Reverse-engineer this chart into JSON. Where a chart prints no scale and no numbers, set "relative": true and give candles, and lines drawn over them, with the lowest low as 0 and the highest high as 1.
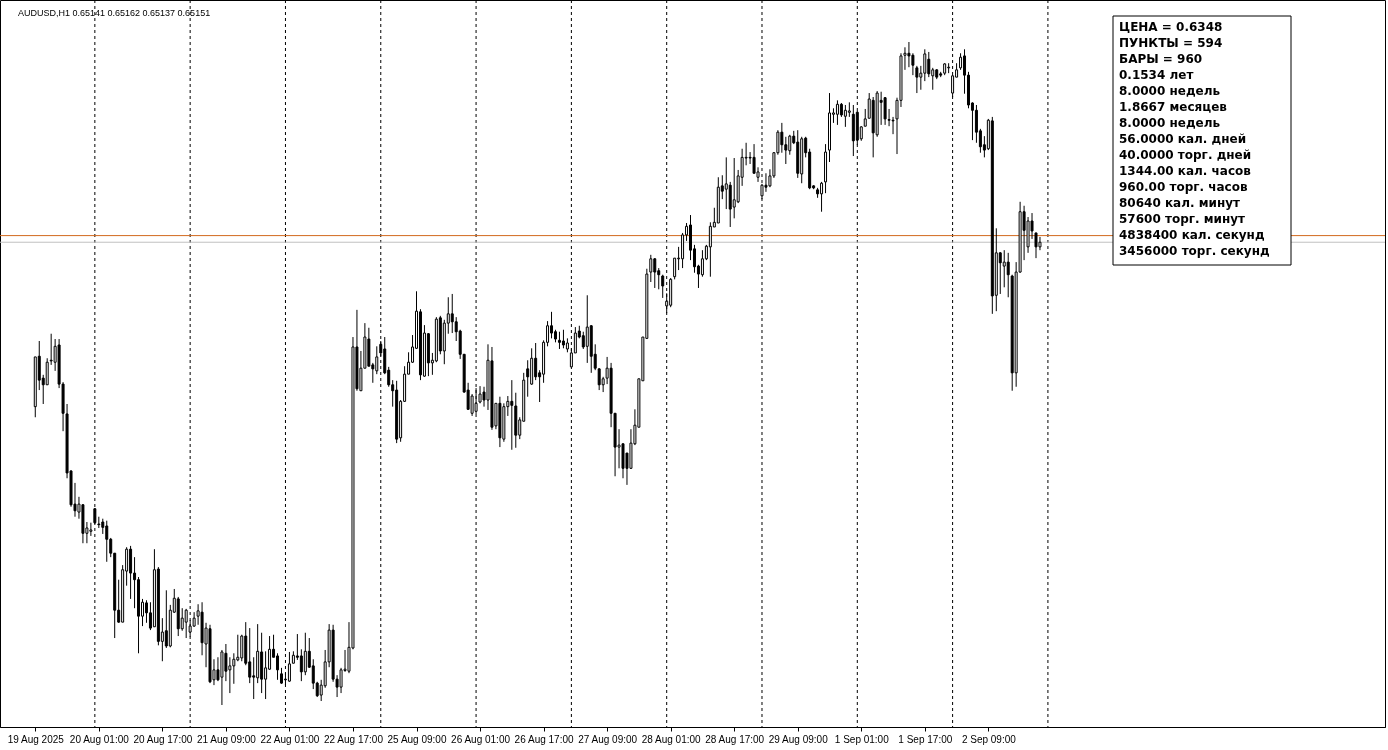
{
  "chart_data": {
    "type": "candlestick",
    "title": "AUDUSD,H1 0.65141 0.65162 0.65137 0.65151",
    "relative": true,
    "tick_labels": "x",
    "color": "#000000",
    "categories": [
      "19 Aug 2025",
      null,
      null,
      null,
      null,
      null,
      null,
      null,
      null,
      null,
      null,
      null,
      null,
      null,
      null,
      null,
      "20 Aug 01:00",
      null,
      null,
      null,
      null,
      null,
      null,
      null,
      null,
      null,
      null,
      null,
      null,
      null,
      null,
      null,
      "20 Aug 17:00",
      null,
      null,
      null,
      null,
      null,
      null,
      null,
      null,
      null,
      null,
      null,
      null,
      null,
      null,
      null,
      "21 Aug 09:00",
      null,
      null,
      null,
      null,
      null,
      null,
      null,
      null,
      null,
      null,
      null,
      null,
      null,
      null,
      null,
      "22 Aug 01:00",
      null,
      null,
      null,
      null,
      null,
      null,
      null,
      null,
      null,
      null,
      null,
      null,
      null,
      null,
      null,
      "22 Aug 17:00",
      null,
      null,
      null,
      null,
      null,
      null,
      null,
      null,
      null,
      null,
      null,
      null,
      null,
      null,
      null,
      "25 Aug 09:00",
      null,
      null,
      null,
      null,
      null,
      null,
      null,
      null,
      null,
      null,
      null,
      null,
      null,
      null,
      null,
      "26 Aug 01:00",
      null,
      null,
      null,
      null,
      null,
      null,
      null,
      null,
      null,
      null,
      null,
      null,
      null,
      null,
      null,
      "26 Aug 17:00",
      null,
      null,
      null,
      null,
      null,
      null,
      null,
      null,
      null,
      null,
      null,
      null,
      null,
      null,
      null,
      "27 Aug 09:00",
      null,
      null,
      null,
      null,
      null,
      null,
      null,
      null,
      null,
      null,
      null,
      null,
      null,
      null,
      null,
      "28 Aug 01:00",
      null,
      null,
      null,
      null,
      null,
      null,
      null,
      null,
      null,
      null,
      null,
      null,
      null,
      null,
      null,
      "28 Aug 17:00",
      null,
      null,
      null,
      null,
      null,
      null,
      null,
      null,
      null,
      null,
      null,
      null,
      null,
      null,
      null,
      "29 Aug 09:00",
      null,
      null,
      null,
      null,
      null,
      null,
      null,
      null,
      null,
      null,
      null,
      null,
      null,
      null,
      null,
      "1 Sep 01:00",
      null,
      null,
      null,
      null,
      null,
      null,
      null,
      null,
      null,
      null,
      null,
      null,
      null,
      null,
      null,
      "1 Sep 17:00",
      null,
      null,
      null,
      null,
      null,
      null,
      null,
      null,
      null,
      null,
      null,
      null,
      null,
      null,
      null,
      "2 Sep 09:00",
      null,
      null,
      null,
      null,
      null,
      null,
      null,
      null,
      null,
      null,
      null,
      null,
      null
    ],
    "ohlc": [
      [
        0.45,
        0.525,
        0.434,
        0.525
      ],
      [
        0.526,
        0.549,
        0.475,
        0.49
      ],
      [
        0.493,
        0.498,
        0.454,
        0.483
      ],
      [
        0.483,
        0.523,
        0.483,
        0.517
      ],
      [
        0.52,
        0.56,
        0.513,
        0.519
      ],
      [
        0.517,
        0.552,
        0.504,
        0.541
      ],
      [
        0.543,
        0.552,
        0.478,
        0.484
      ],
      [
        0.484,
        0.487,
        0.413,
        0.44
      ],
      [
        0.439,
        0.454,
        0.342,
        0.35
      ],
      [
        0.353,
        0.354,
        0.299,
        0.302
      ],
      [
        0.303,
        0.335,
        0.284,
        0.293
      ],
      [
        0.291,
        0.314,
        0.281,
        0.303
      ],
      [
        0.302,
        0.303,
        0.244,
        0.259
      ],
      [
        0.259,
        0.276,
        0.244,
        0.267
      ],
      [
        0.262,
        0.275,
        0.255,
        0.264
      ],
      [
        0.296,
        0.297,
        0.273,
        0.275
      ],
      [
        0.273,
        0.284,
        0.267,
        0.272
      ],
      [
        0.276,
        0.281,
        0.258,
        0.268
      ],
      [
        0.27,
        0.278,
        0.216,
        0.25
      ],
      [
        0.25,
        0.252,
        0.223,
        0.229
      ],
      [
        0.229,
        0.229,
        0.101,
        0.143
      ],
      [
        0.143,
        0.189,
        0.124,
        0.125
      ],
      [
        0.125,
        0.211,
        0.125,
        0.204
      ],
      [
        0.202,
        0.238,
        0.18,
        0.235
      ],
      [
        0.235,
        0.24,
        0.16,
        0.199
      ],
      [
        0.199,
        0.223,
        0.146,
        0.189
      ],
      [
        0.189,
        0.193,
        0.078,
        0.134
      ],
      [
        0.134,
        0.16,
        0.119,
        0.155
      ],
      [
        0.154,
        0.158,
        0.124,
        0.139
      ],
      [
        0.139,
        0.155,
        0.113,
        0.116
      ],
      [
        0.118,
        0.235,
        0.118,
        0.204
      ],
      [
        0.205,
        0.208,
        0.09,
        0.096
      ],
      [
        0.096,
        0.131,
        0.066,
        0.11
      ],
      [
        0.112,
        0.173,
        0.086,
        0.089
      ],
      [
        0.089,
        0.151,
        0.087,
        0.143
      ],
      [
        0.14,
        0.175,
        0.139,
        0.161
      ],
      [
        0.16,
        0.163,
        0.104,
        0.115
      ],
      [
        0.115,
        0.146,
        0.112,
        0.131
      ],
      [
        0.125,
        0.145,
        0.101,
        0.143
      ],
      [
        0.11,
        0.128,
        0.103,
        0.119
      ],
      [
        0.119,
        0.14,
        0.118,
        0.131
      ],
      [
        0.134,
        0.152,
        0.121,
        0.142
      ],
      [
        0.14,
        0.155,
        0.075,
        0.094
      ],
      [
        0.092,
        0.124,
        0.057,
        0.116
      ],
      [
        0.115,
        0.121,
        0.033,
        0.035
      ],
      [
        0.038,
        0.069,
        0.03,
        0.053
      ],
      [
        0.053,
        0.072,
        0.036,
        0.038
      ],
      [
        0.042,
        0.083,
        0,
        0.08
      ],
      [
        0.078,
        0.092,
        0.036,
        0.051
      ],
      [
        0.053,
        0.072,
        0.018,
        0.059
      ],
      [
        0.059,
        0.078,
        0.032,
        0.069
      ],
      [
        0.068,
        0.106,
        0.066,
        0.072
      ],
      [
        0.071,
        0.106,
        0.066,
        0.104
      ],
      [
        0.104,
        0.125,
        0.06,
        0.063
      ],
      [
        0.065,
        0.116,
        0.033,
        0.042
      ],
      [
        0.044,
        0.072,
        0.009,
        0.042
      ],
      [
        0.041,
        0.122,
        0.033,
        0.081
      ],
      [
        0.08,
        0.109,
        0.018,
        0.039
      ],
      [
        0.039,
        0.081,
        0.009,
        0.056
      ],
      [
        0.054,
        0.104,
        0.053,
        0.084
      ],
      [
        0.084,
        0.106,
        0.072,
        0.072
      ],
      [
        0.074,
        0.078,
        0.038,
        0.053
      ],
      [
        0.047,
        0.056,
        0.032,
        0.033
      ],
      [
        0.039,
        0.048,
        0.03,
        0.038
      ],
      [
        0.036,
        0.08,
        0.035,
        0.062
      ],
      [
        0.063,
        0.081,
        0.063,
        0.075
      ],
      [
        0.074,
        0.107,
        0.068,
        0.072
      ],
      [
        0.074,
        0.084,
        0.036,
        0.05
      ],
      [
        0.05,
        0.109,
        0.045,
        0.081
      ],
      [
        0.081,
        0.101,
        0.056,
        0.057
      ],
      [
        0.059,
        0.069,
        0.024,
        0.033
      ],
      [
        0.033,
        0.035,
        0.012,
        0.014
      ],
      [
        0.015,
        0.038,
        0.006,
        0.03
      ],
      [
        0.029,
        0.083,
        0.026,
        0.065
      ],
      [
        0.065,
        0.122,
        0.057,
        0.113
      ],
      [
        0.113,
        0.121,
        0.035,
        0.039
      ],
      [
        0.039,
        0.045,
        0.012,
        0.027
      ],
      [
        0.027,
        0.056,
        0.018,
        0.053
      ],
      [
        0.052,
        0.083,
        0.05,
        0.054
      ],
      [
        0.051,
        0.125,
        0.048,
        0.087
      ],
      [
        0.086,
        0.555,
        0.084,
        0.54
      ],
      [
        0.54,
        0.596,
        0.474,
        0.477
      ],
      [
        0.474,
        0.534,
        0.474,
        0.508
      ],
      [
        0.508,
        0.576,
        0.508,
        0.555
      ],
      [
        0.552,
        0.569,
        0.511,
        0.511
      ],
      [
        0.513,
        0.516,
        0.486,
        0.507
      ],
      [
        0.504,
        0.541,
        0.499,
        0.525
      ],
      [
        0.544,
        0.549,
        0.526,
        0.531
      ],
      [
        0.537,
        0.555,
        0.499,
        0.501
      ],
      [
        0.505,
        0.51,
        0.48,
        0.483
      ],
      [
        0.483,
        0.49,
        0.45,
        0.474
      ],
      [
        0.475,
        0.489,
        0.395,
        0.401
      ],
      [
        0.403,
        0.46,
        0.397,
        0.458
      ],
      [
        0.458,
        0.511,
        0.457,
        0.499
      ],
      [
        0.499,
        0.532,
        0.499,
        0.517
      ],
      [
        0.517,
        0.558,
        0.516,
        0.54
      ],
      [
        0.538,
        0.624,
        0.537,
        0.594
      ],
      [
        0.593,
        0.597,
        0.49,
        0.498
      ],
      [
        0.496,
        0.573,
        0.495,
        0.561
      ],
      [
        0.56,
        0.561,
        0.496,
        0.516
      ],
      [
        0.516,
        0.531,
        0.498,
        0.52
      ],
      [
        0.519,
        0.585,
        0.517,
        0.582
      ],
      [
        0.584,
        0.587,
        0.529,
        0.534
      ],
      [
        0.534,
        0.581,
        0.514,
        0.576
      ],
      [
        0.576,
        0.615,
        0.56,
        0.59
      ],
      [
        0.59,
        0.62,
        0.561,
        0.578
      ],
      [
        0.578,
        0.585,
        0.549,
        0.563
      ],
      [
        0.564,
        0.566,
        0.522,
        0.529
      ],
      [
        0.529,
        0.529,
        0.471,
        0.472
      ],
      [
        0.475,
        0.486,
        0.445,
        0.446
      ],
      [
        0.44,
        0.469,
        0.436,
        0.466
      ],
      [
        0.443,
        0.478,
        0.439,
        0.455
      ],
      [
        0.457,
        0.481,
        0.455,
        0.469
      ],
      [
        0.472,
        0.48,
        0.45,
        0.46
      ],
      [
        0.46,
        0.544,
        0.445,
        0.52
      ],
      [
        0.519,
        0.54,
        0.415,
        0.419
      ],
      [
        0.421,
        0.455,
        0.416,
        0.455
      ],
      [
        0.455,
        0.465,
        0.389,
        0.403
      ],
      [
        0.401,
        0.455,
        0.397,
        0.45
      ],
      [
        0.45,
        0.466,
        0.436,
        0.458
      ],
      [
        0.458,
        0.49,
        0.385,
        0.452
      ],
      [
        0.451,
        0.471,
        0.388,
        0.407
      ],
      [
        0.407,
        0.434,
        0.401,
        0.43
      ],
      [
        0.428,
        0.501,
        0.428,
        0.49
      ],
      [
        0.507,
        0.52,
        0.465,
        0.495
      ],
      [
        0.484,
        0.538,
        0.483,
        0.523
      ],
      [
        0.523,
        0.546,
        0.49,
        0.495
      ],
      [
        0.501,
        0.505,
        0.457,
        0.495
      ],
      [
        0.499,
        0.55,
        0.486,
        0.547
      ],
      [
        0.547,
        0.579,
        0.541,
        0.572
      ],
      [
        0.572,
        0.593,
        0.553,
        0.561
      ],
      [
        0.563,
        0.566,
        0.547,
        0.552
      ],
      [
        0.55,
        0.563,
        0.537,
        0.547
      ],
      [
        0.549,
        0.566,
        0.538,
        0.543
      ],
      [
        0.537,
        0.553,
        0.532,
        0.546
      ],
      [
        0.51,
        0.538,
        0.51,
        0.531
      ],
      [
        0.531,
        0.57,
        0.531,
        0.561
      ],
      [
        0.564,
        0.572,
        0.553,
        0.555
      ],
      [
        0.557,
        0.563,
        0.537,
        0.54
      ],
      [
        0.541,
        0.618,
        0.516,
        0.57
      ],
      [
        0.572,
        0.573,
        0.501,
        0.526
      ],
      [
        0.529,
        0.544,
        0.505,
        0.508
      ],
      [
        0.507,
        0.508,
        0.475,
        0.483
      ],
      [
        0.483,
        0.495,
        0.472,
        0.492
      ],
      [
        0.493,
        0.525,
        0.484,
        0.508
      ],
      [
        0.508,
        0.516,
        0.419,
        0.44
      ],
      [
        0.44,
        0.44,
        0.345,
        0.389
      ],
      [
        0.389,
        0.416,
        0.357,
        0.392
      ],
      [
        0.394,
        0.394,
        0.342,
        0.357
      ],
      [
        0.38,
        0.38,
        0.332,
        0.357
      ],
      [
        0.357,
        0.416,
        0.356,
        0.395
      ],
      [
        0.394,
        0.446,
        0.392,
        0.422
      ],
      [
        0.419,
        0.492,
        0.419,
        0.492
      ],
      [
        0.489,
        0.555,
        0.489,
        0.555
      ],
      [
        0.553,
        0.658,
        0.552,
        0.65
      ],
      [
        0.653,
        0.679,
        0.638,
        0.673
      ],
      [
        0.673,
        0.674,
        0.629,
        0.653
      ],
      [
        0.655,
        0.659,
        0.627,
        0.649
      ],
      [
        0.647,
        0.649,
        0.614,
        0.632
      ],
      [
        0.602,
        0.621,
        0.591,
        0.609
      ],
      [
        0.603,
        0.644,
        0.6,
        0.642
      ],
      [
        0.646,
        0.674,
        0.642,
        0.674
      ],
      [
        0.673,
        0.691,
        0.656,
        0.674
      ],
      [
        0.673,
        0.712,
        0.659,
        0.709
      ],
      [
        0.709,
        0.727,
        0.7,
        0.722
      ],
      [
        0.724,
        0.739,
        0.671,
        0.686
      ],
      [
        0.688,
        0.694,
        0.652,
        0.661
      ],
      [
        0.662,
        0.664,
        0.629,
        0.65
      ],
      [
        0.649,
        0.686,
        0.646,
        0.673
      ],
      [
        0.673,
        0.694,
        0.671,
        0.692
      ],
      [
        0.691,
        0.728,
        0.646,
        0.722
      ],
      [
        0.721,
        0.75,
        0.721,
        0.728
      ],
      [
        0.727,
        0.796,
        0.727,
        0.781
      ],
      [
        0.783,
        0.799,
        0.763,
        0.775
      ],
      [
        0.778,
        0.826,
        0.748,
        0.786
      ],
      [
        0.784,
        0.789,
        0.721,
        0.748
      ],
      [
        0.751,
        0.825,
        0.734,
        0.762
      ],
      [
        0.759,
        0.807,
        0.757,
        0.798
      ],
      [
        0.796,
        0.839,
        0.783,
        0.826
      ],
      [
        0.825,
        0.848,
        0.814,
        0.826
      ],
      [
        0.826,
        0.834,
        0.816,
        0.825
      ],
      [
        0.826,
        0.846,
        0.802,
        0.802
      ],
      [
        0.796,
        0.811,
        0.789,
        0.804
      ],
      [
        0.768,
        0.786,
        0.763,
        0.784
      ],
      [
        0.784,
        0.802,
        0.774,
        0.781
      ],
      [
        0.783,
        0.808,
        0.781,
        0.798
      ],
      [
        0.798,
        0.834,
        0.795,
        0.833
      ],
      [
        0.833,
        0.867,
        0.83,
        0.864
      ],
      [
        0.864,
        0.878,
        0.833,
        0.845
      ],
      [
        0.845,
        0.857,
        0.816,
        0.837
      ],
      [
        0.836,
        0.86,
        0.83,
        0.858
      ],
      [
        0.858,
        0.866,
        0.846,
        0.848
      ],
      [
        0.849,
        0.867,
        0.795,
        0.802
      ],
      [
        0.801,
        0.857,
        0.787,
        0.854
      ],
      [
        0.855,
        0.857,
        0.826,
        0.833
      ],
      [
        0.834,
        0.839,
        0.778,
        0.78
      ],
      [
        0.783,
        0.784,
        0.778,
        0.78
      ],
      [
        0.777,
        0.78,
        0.765,
        0.771
      ],
      [
        0.771,
        0.789,
        0.744,
        0.787
      ],
      [
        0.789,
        0.846,
        0.772,
        0.834
      ],
      [
        0.837,
        0.923,
        0.819,
        0.893
      ],
      [
        0.891,
        0.9,
        0.878,
        0.893
      ],
      [
        0.891,
        0.912,
        0.875,
        0.906
      ],
      [
        0.906,
        0.908,
        0.887,
        0.89
      ],
      [
        0.888,
        0.905,
        0.872,
        0.897
      ],
      [
        0.894,
        0.909,
        0.887,
        0.896
      ],
      [
        0.891,
        0.905,
        0.828,
        0.851
      ],
      [
        0.894,
        0.896,
        0.845,
        0.852
      ],
      [
        0.854,
        0.873,
        0.851,
        0.872
      ],
      [
        0.873,
        0.899,
        0.873,
        0.884
      ],
      [
        0.885,
        0.923,
        0.885,
        0.914
      ],
      [
        0.912,
        0.917,
        0.826,
        0.863
      ],
      [
        0.86,
        0.926,
        0.857,
        0.923
      ],
      [
        0.912,
        0.925,
        0.875,
        0.909
      ],
      [
        0.916,
        0.917,
        0.875,
        0.884
      ],
      [
        0.883,
        0.899,
        0.873,
        0.882
      ],
      [
        0.882,
        0.887,
        0.861,
        0.881
      ],
      [
        0.884,
        0.916,
        0.831,
        0.912
      ],
      [
        0.912,
        0.983,
        0.902,
        0.979
      ],
      [
        0.98,
        0.992,
        0.958,
        0.983
      ],
      [
        0.983,
        1,
        0.962,
        0.979
      ],
      [
        0.98,
        0.983,
        0.95,
        0.965
      ],
      [
        0.961,
        0.964,
        0.923,
        0.947
      ],
      [
        0.947,
        0.964,
        0.928,
        0.953
      ],
      [
        0.953,
        0.989,
        0.941,
        0.982
      ],
      [
        0.974,
        0.985,
        0.947,
        0.952
      ],
      [
        0.949,
        0.961,
        0.928,
        0.958
      ],
      [
        0.958,
        0.959,
        0.944,
        0.947
      ],
      [
        0.952,
        0.955,
        0.947,
        0.95
      ],
      [
        0.953,
        0.968,
        0.95,
        0.967
      ],
      [
        0.961,
        0.968,
        0.953,
        0.962
      ],
      [
        0.923,
        0.95,
        0.917,
        0.949
      ],
      [
        0.947,
        0.968,
        0.947,
        0.958
      ],
      [
        0.961,
        0.983,
        0.958,
        0.977
      ],
      [
        0.979,
        0.989,
        0.922,
        0.95
      ],
      [
        0.95,
        0.955,
        0.9,
        0.905
      ],
      [
        0.908,
        0.909,
        0.852,
        0.897
      ],
      [
        0.897,
        0.905,
        0.848,
        0.864
      ],
      [
        0.866,
        0.869,
        0.833,
        0.842
      ],
      [
        0.845,
        0.858,
        0.826,
        0.837
      ],
      [
        0.839,
        0.884,
        0.837,
        0.882
      ],
      [
        0.881,
        0.887,
        0.59,
        0.617
      ],
      [
        0.618,
        0.719,
        0.594,
        0.682
      ],
      [
        0.682,
        0.683,
        0.62,
        0.667
      ],
      [
        0.662,
        0.686,
        0.63,
        0.668
      ],
      [
        0.668,
        0.682,
        0.615,
        0.649
      ],
      [
        0.647,
        0.649,
        0.474,
        0.501
      ],
      [
        0.501,
        0.668,
        0.48,
        0.653
      ],
      [
        0.653,
        0.759,
        0.652,
        0.744
      ],
      [
        0.744,
        0.753,
        0.671,
        0.716
      ],
      [
        0.691,
        0.736,
        0.682,
        0.73
      ],
      [
        0.73,
        0.742,
        0.703,
        0.715
      ],
      [
        0.712,
        0.712,
        0.674,
        0.691
      ],
      [
        0.691,
        0.706,
        0.686,
        0.698
      ]
    ],
    "ref_lines": [
      {
        "axis": "y",
        "value": 0.708,
        "color": "#d2691e"
      },
      {
        "axis": "y",
        "value": 0.698,
        "color": "#c0c0c0"
      }
    ],
    "annotations": [
      "ЦЕНА = 0.6348",
      "ПУНКТЫ = 594",
      "БАРЫ = 960",
      "0.1534 лет",
      "8.0000 недель",
      "1.8667 месяцев",
      "8.0000 недель",
      "56.0000 кал. дней",
      "40.0000 торг. дней",
      "1344.00 кал. часов",
      "960.00 торг. часов",
      "80640 кал. минут",
      "57600 торг. минут",
      "4838400 кал. секунд",
      "3456000 торг. секунд"
    ]
  }
}
